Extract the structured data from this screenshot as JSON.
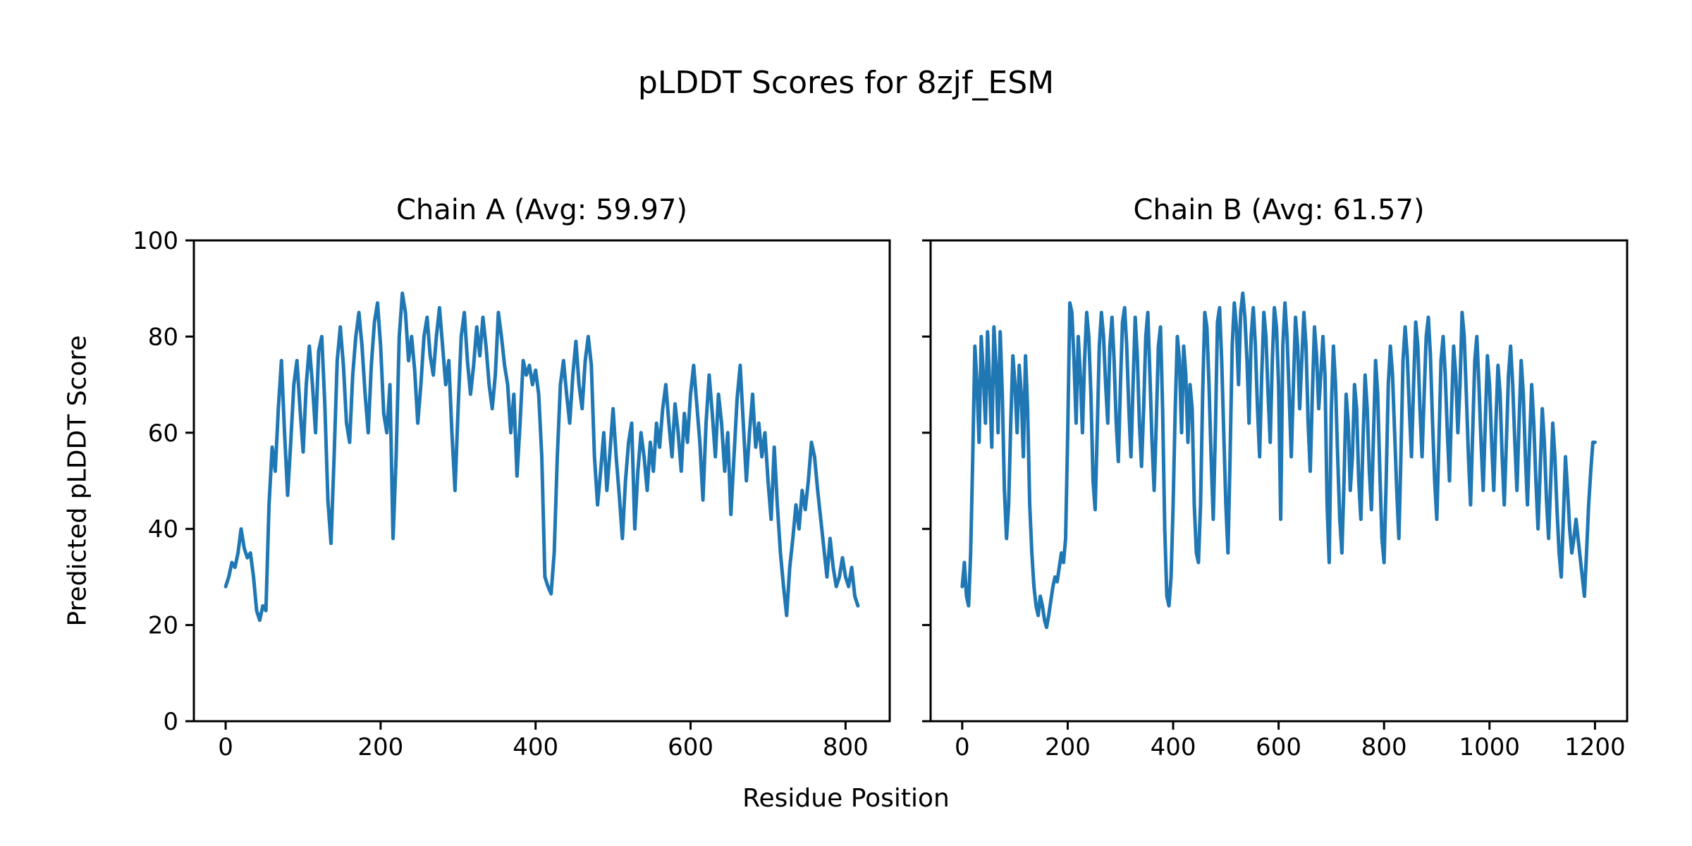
{
  "figure": {
    "title": "pLDDT Scores for 8zjf_ESM",
    "xlabel": "Residue Position",
    "ylabel": "Predicted pLDDT Score",
    "background_color": "#ffffff",
    "text_color": "#000000",
    "spine_color": "#000000"
  },
  "chart_data": [
    {
      "type": "line",
      "chain": "A",
      "title": "Chain A (Avg: 59.97)",
      "avg": 59.97,
      "line_color": "#1f77b4",
      "xlim": [
        -41,
        857
      ],
      "ylim": [
        0,
        100
      ],
      "xticks": [
        0,
        200,
        400,
        600,
        800
      ],
      "yticks": [
        0,
        20,
        40,
        60,
        80,
        100
      ],
      "show_ytick_labels": true,
      "x_start": 0,
      "x_step": 4,
      "y": [
        28,
        30,
        33,
        32,
        35,
        40,
        36,
        34,
        35,
        30,
        23,
        21,
        24,
        23,
        45,
        57,
        52,
        65,
        75,
        60,
        47,
        58,
        70,
        75,
        65,
        56,
        70,
        78,
        70,
        60,
        77,
        80,
        66,
        46,
        37,
        55,
        75,
        82,
        74,
        62,
        58,
        72,
        80,
        85,
        78,
        68,
        60,
        74,
        83,
        87,
        78,
        64,
        60,
        70,
        38,
        55,
        80,
        89,
        85,
        75,
        80,
        73,
        62,
        70,
        80,
        84,
        76,
        72,
        80,
        86,
        78,
        70,
        75,
        60,
        48,
        65,
        80,
        85,
        75,
        68,
        74,
        82,
        76,
        84,
        78,
        70,
        65,
        72,
        85,
        80,
        74,
        70,
        60,
        68,
        51,
        62,
        75,
        72,
        74,
        70,
        73,
        68,
        55,
        30,
        28,
        26.5,
        35,
        55,
        70,
        75,
        68,
        62,
        72,
        79,
        70,
        65,
        75,
        80,
        74,
        55,
        45,
        52,
        60,
        48,
        56,
        65,
        55,
        47,
        38,
        50,
        58,
        62,
        40,
        52,
        60,
        55,
        48,
        58,
        52,
        62,
        57,
        65,
        70,
        62,
        55,
        66,
        60,
        52,
        64,
        58,
        68,
        74,
        66,
        58,
        46,
        62,
        72,
        64,
        55,
        68,
        62,
        52,
        60,
        43,
        55,
        67,
        74,
        62,
        50,
        60,
        68,
        57,
        62,
        55,
        60,
        50,
        42,
        57,
        45,
        35,
        28,
        22,
        32,
        38,
        45,
        40,
        48,
        44,
        50,
        58,
        55,
        48,
        42,
        36,
        30,
        38,
        32,
        28,
        30,
        34,
        30,
        28,
        32,
        26,
        24
      ]
    },
    {
      "type": "line",
      "chain": "B",
      "title": "Chain B (Avg: 61.57)",
      "avg": 61.57,
      "line_color": "#1f77b4",
      "xlim": [
        -60,
        1261
      ],
      "ylim": [
        0,
        100
      ],
      "xticks": [
        0,
        200,
        400,
        600,
        800,
        1000,
        1200
      ],
      "yticks": [
        0,
        20,
        40,
        60,
        80,
        100
      ],
      "show_ytick_labels": false,
      "x_start": 0,
      "x_step": 4,
      "y": [
        28,
        33,
        26,
        24,
        35,
        55,
        78,
        70,
        58,
        80,
        72,
        62,
        81,
        70,
        57,
        82,
        74,
        60,
        81,
        68,
        48,
        38,
        45,
        62,
        76,
        70,
        60,
        74,
        68,
        55,
        76,
        65,
        45,
        35,
        28,
        24,
        22,
        26,
        24,
        21,
        19.5,
        22,
        25,
        28,
        30,
        29,
        32,
        35,
        33,
        38,
        60,
        87,
        85,
        75,
        62,
        80,
        72,
        60,
        75,
        85,
        80,
        68,
        50,
        44,
        60,
        78,
        85,
        80,
        70,
        62,
        78,
        84,
        75,
        62,
        54,
        70,
        83,
        86,
        78,
        65,
        55,
        70,
        84,
        76,
        62,
        53,
        65,
        80,
        85,
        72,
        58,
        48,
        62,
        78,
        82,
        65,
        40,
        26,
        24,
        30,
        45,
        65,
        80,
        75,
        60,
        78,
        72,
        58,
        70,
        65,
        45,
        35,
        33,
        45,
        68,
        85,
        82,
        70,
        55,
        42,
        60,
        83,
        86,
        75,
        60,
        45,
        35,
        55,
        78,
        87,
        82,
        70,
        85,
        89,
        84,
        75,
        62,
        80,
        86,
        78,
        65,
        55,
        72,
        85,
        80,
        68,
        58,
        75,
        86,
        82,
        70,
        42,
        78,
        87,
        80,
        68,
        55,
        70,
        84,
        78,
        65,
        75,
        85,
        78,
        62,
        52,
        68,
        82,
        76,
        65,
        72,
        80,
        72,
        45,
        33,
        65,
        78,
        70,
        55,
        42,
        35,
        50,
        68,
        62,
        48,
        55,
        70,
        65,
        50,
        42,
        58,
        72,
        65,
        52,
        44,
        60,
        75,
        68,
        52,
        38,
        33,
        50,
        70,
        78,
        72,
        60,
        48,
        38,
        55,
        75,
        82,
        76,
        65,
        55,
        70,
        83,
        78,
        65,
        55,
        68,
        80,
        84,
        76,
        62,
        50,
        42,
        58,
        75,
        80,
        72,
        60,
        50,
        65,
        78,
        72,
        60,
        70,
        85,
        80,
        68,
        55,
        45,
        60,
        75,
        80,
        70,
        58,
        48,
        62,
        76,
        70,
        58,
        48,
        62,
        74,
        68,
        55,
        45,
        58,
        72,
        78,
        70,
        58,
        48,
        62,
        75,
        68,
        55,
        45,
        58,
        70,
        62,
        50,
        40,
        52,
        65,
        58,
        46,
        38,
        50,
        62,
        55,
        44,
        35,
        30,
        42,
        55,
        48,
        40,
        35,
        38,
        42,
        38,
        34,
        30,
        26,
        35,
        45,
        52,
        58,
        58
      ]
    }
  ]
}
